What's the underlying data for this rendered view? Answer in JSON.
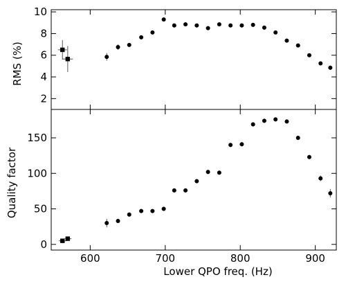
{
  "chart_data": [
    {
      "type": "scatter",
      "panel": "top",
      "xlabel": "",
      "ylabel": "RMS (%)",
      "xlim": [
        548,
        928
      ],
      "ylim": [
        1,
        10.2
      ],
      "yticks": [
        2,
        4,
        6,
        8,
        10
      ],
      "ytick_labels": [
        "2",
        "4",
        "6",
        "8",
        "10"
      ],
      "series": [
        {
          "marker": "square",
          "x": [
            563,
            570
          ],
          "y": [
            6.5,
            5.65
          ],
          "xerr": [
            6,
            7
          ],
          "yerr": [
            0.9,
            1.2
          ]
        },
        {
          "marker": "circle",
          "x": [
            622,
            637,
            652,
            668,
            683,
            698,
            712,
            727,
            742,
            757,
            772,
            787,
            802,
            817,
            832,
            847,
            862,
            877,
            892,
            907,
            920
          ],
          "y": [
            5.85,
            6.75,
            6.95,
            7.65,
            8.1,
            9.3,
            8.75,
            8.85,
            8.75,
            8.5,
            8.85,
            8.75,
            8.75,
            8.8,
            8.55,
            8.1,
            7.35,
            6.9,
            6.0,
            5.25,
            4.85
          ],
          "yerr": [
            0.35,
            0.25,
            0.15,
            0.15,
            0.15,
            0.12,
            0.12,
            0.1,
            0.1,
            0.1,
            0.1,
            0.1,
            0.1,
            0.1,
            0.1,
            0.1,
            0.12,
            0.12,
            0.12,
            0.15,
            0.2
          ]
        }
      ]
    },
    {
      "type": "scatter",
      "panel": "bottom",
      "xlabel": "Lower QPO freq. (Hz)",
      "ylabel": "Quality factor",
      "xlim": [
        548,
        928
      ],
      "ylim": [
        -8,
        190
      ],
      "xticks": [
        600,
        700,
        800,
        900
      ],
      "xtick_labels": [
        "600",
        "700",
        "800",
        "900"
      ],
      "yticks": [
        0,
        50,
        100,
        150
      ],
      "ytick_labels": [
        "0",
        "50",
        "100",
        "150"
      ],
      "series": [
        {
          "marker": "square",
          "x": [
            563,
            570
          ],
          "y": [
            5,
            8
          ],
          "xerr": [
            5,
            5
          ],
          "yerr": [
            2,
            3
          ]
        },
        {
          "marker": "circle",
          "x": [
            622,
            637,
            652,
            668,
            683,
            698,
            712,
            727,
            742,
            757,
            772,
            787,
            802,
            817,
            832,
            847,
            862,
            877,
            892,
            907,
            920
          ],
          "y": [
            30,
            33,
            42,
            47,
            47,
            50,
            76,
            76,
            89,
            102,
            101,
            140,
            141,
            169,
            174,
            176,
            173,
            150,
            123,
            93,
            72
          ],
          "yerr": [
            6,
            3,
            3,
            3,
            3,
            3,
            3,
            3,
            3,
            3,
            3,
            3,
            3,
            3,
            3,
            3,
            3,
            3,
            3,
            4,
            6
          ]
        }
      ]
    }
  ]
}
